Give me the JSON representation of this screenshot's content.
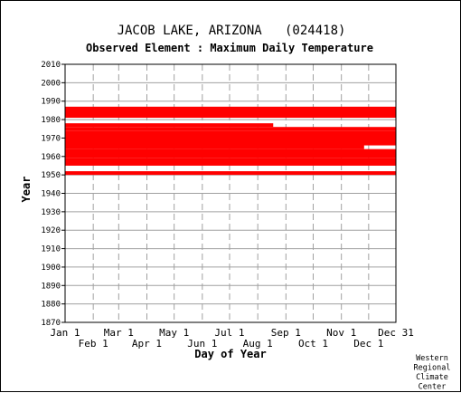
{
  "chart_data": {
    "type": "heatmap",
    "title": "JACOB LAKE, ARIZONA   (024418)",
    "subtitle": "Observed Element : Maximum Daily Temperature",
    "xlabel": "Day of Year",
    "ylabel": "Year",
    "ylim": [
      1870,
      2010
    ],
    "y_ticks": [
      2010,
      2000,
      1990,
      1980,
      1970,
      1960,
      1950,
      1940,
      1930,
      1920,
      1910,
      1900,
      1890,
      1880,
      1870
    ],
    "x_ticks_top_row": [
      "Jan 1",
      "Mar 1",
      "May 1",
      "Jul 1",
      "Sep 1",
      "Nov 1",
      "Dec 31"
    ],
    "x_ticks_bottom_row": [
      "Feb 1",
      "Apr 1",
      "Jun 1",
      "Aug 1",
      "Oct 1",
      "Dec 1"
    ],
    "grid": true,
    "mark_color": "#ff0000",
    "coverage": [
      {
        "year_from": 1981,
        "year_to": 1986,
        "day_from": 1,
        "day_to": 365
      },
      {
        "year_from": 1976,
        "year_to": 1977,
        "day_from": 1,
        "day_to": 230
      },
      {
        "year_from": 1974,
        "year_to": 1975,
        "day_from": 1,
        "day_to": 365
      },
      {
        "year_from": 1966,
        "year_to": 1973,
        "day_from": 1,
        "day_to": 365
      },
      {
        "year_from": 1964,
        "year_to": 1966,
        "day_from": 1,
        "day_to": 330
      },
      {
        "year_from": 1959,
        "year_to": 1963,
        "day_from": 1,
        "day_to": 365
      },
      {
        "year_from": 1955,
        "year_to": 1958,
        "day_from": 1,
        "day_to": 365
      },
      {
        "year_from": 1950,
        "year_to": 1951,
        "day_from": 1,
        "day_to": 365
      }
    ],
    "credit": [
      "Western",
      "Regional",
      "Climate",
      "Center"
    ]
  }
}
